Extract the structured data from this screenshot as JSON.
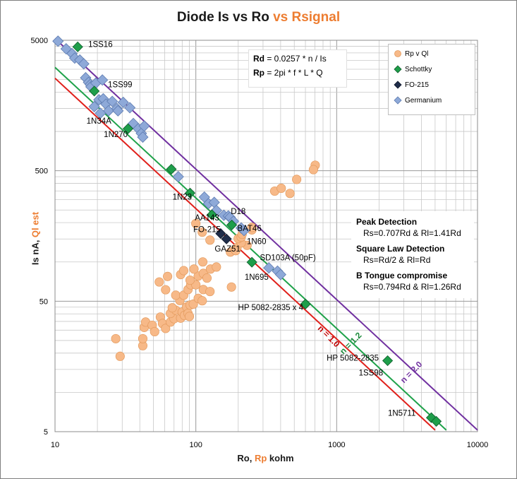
{
  "title": {
    "part1": "Diode   Is vs Ro",
    "part2": "vs  Rsignal"
  },
  "xlabel": {
    "part1": "Ro, ",
    "part2": "Rp",
    "part3": " kohm"
  },
  "ylabel": {
    "part1": "Is nA, ",
    "part2": "Ql est"
  },
  "colors": {
    "orange": "#ed7d31",
    "schottky": "#1e9e4a",
    "fo215": "#1f2d4a",
    "germanium": "#8ea9d8",
    "red": "#e0201b",
    "green": "#1fa24a",
    "purple": "#7030a0"
  },
  "formula": {
    "rd_label": "Rd",
    "rd_expr": " = 0.0257 * n / Is",
    "rp_label": "Rp",
    "rp_expr": " = 2pi * f * L * Q"
  },
  "legend": [
    {
      "label": "Rp v Ql",
      "type": "circle",
      "color": "#f7b988"
    },
    {
      "label": "Schottky",
      "type": "diamond",
      "color": "#1e9e4a"
    },
    {
      "label": "FO-215",
      "type": "diamond",
      "color": "#1f2d4a"
    },
    {
      "label": "Germanium",
      "type": "diamond",
      "color": "#8ea9d8"
    }
  ],
  "detection": [
    {
      "head": "Peak Detection",
      "eq": "Rs=0.707Rd & Rl=1.41Rd"
    },
    {
      "head": "Square Law Detection",
      "eq": "Rs=Rd/2 & Rl=Rd"
    },
    {
      "head": "B Tongue compromise",
      "eq": "Rs=0.794Rd & Rl=1.26Rd"
    }
  ],
  "chart_data": {
    "type": "scatter",
    "title": "Diode   Is vs Ro  vs  Rsignal",
    "xlabel": "Ro, Rp kohm",
    "ylabel": "Is nA, Ql est",
    "xscale": "log",
    "yscale": "log",
    "xlim": [
      10,
      10000
    ],
    "ylim": [
      5,
      5000
    ],
    "xticks": [
      "10",
      "100",
      "1000",
      "10000"
    ],
    "yticks": [
      "5",
      "50",
      "500",
      "5000"
    ],
    "grid": true,
    "legend_position": "top-right",
    "lines": [
      {
        "label": "n = 1.0",
        "color": "#e0201b",
        "x": [
          10,
          5000
        ],
        "y": [
          2560,
          5.14
        ]
      },
      {
        "label": "n = 1.2",
        "color": "#1fa24a",
        "x": [
          10,
          6000
        ],
        "y": [
          3100,
          5.14
        ]
      },
      {
        "label": "n = 2.0",
        "color": "#7030a0",
        "x": [
          10,
          10000
        ],
        "y": [
          5150,
          5.14
        ]
      }
    ],
    "series": [
      {
        "name": "Rp v Ql",
        "points": [
          [
            100,
            197
          ],
          [
            111,
            169
          ],
          [
            126,
            147
          ],
          [
            27,
            25.8
          ],
          [
            29,
            18.9
          ],
          [
            42,
            22.8
          ],
          [
            42,
            25.8
          ],
          [
            43,
            31.5
          ],
          [
            44,
            34.6
          ],
          [
            49,
            32.7
          ],
          [
            51,
            29.2
          ],
          [
            56,
            37.8
          ],
          [
            58,
            33.7
          ],
          [
            61,
            30.9
          ],
          [
            66,
            34.6
          ],
          [
            70,
            36.7
          ],
          [
            66,
            40.3
          ],
          [
            72,
            42.7
          ],
          [
            78,
            37.1
          ],
          [
            80,
            41.3
          ],
          [
            83,
            38.9
          ],
          [
            86,
            45.2
          ],
          [
            88,
            40.3
          ],
          [
            90,
            38.2
          ],
          [
            68,
            44.5
          ],
          [
            77,
            50.6
          ],
          [
            91,
            46.7
          ],
          [
            96,
            47.5
          ],
          [
            104,
            52.6
          ],
          [
            111,
            50.4
          ],
          [
            72,
            55.6
          ],
          [
            82,
            55.6
          ],
          [
            88,
            61.4
          ],
          [
            92,
            66.8
          ],
          [
            100,
            66.8
          ],
          [
            113,
            61.4
          ],
          [
            126,
            59.3
          ],
          [
            91,
            72.5
          ],
          [
            104,
            77.9
          ],
          [
            113,
            81.7
          ],
          [
            120,
            75.2
          ],
          [
            127,
            88.2
          ],
          [
            140,
            91.4
          ],
          [
            61,
            61.2
          ],
          [
            55,
            70.2
          ],
          [
            63,
            77.4
          ],
          [
            78,
            80.0
          ],
          [
            82,
            85.8
          ],
          [
            97,
            88.2
          ],
          [
            112,
            100
          ],
          [
            179,
            64.2
          ],
          [
            176,
            119
          ],
          [
            190,
            124
          ],
          [
            196,
            129
          ],
          [
            231,
            134
          ],
          [
            210,
            140
          ],
          [
            192,
            122
          ],
          [
            200,
            151
          ],
          [
            250,
            176
          ],
          [
            250,
            184
          ],
          [
            210,
            155
          ],
          [
            213,
            163
          ],
          [
            363,
            349
          ],
          [
            404,
            367
          ],
          [
            466,
            335
          ],
          [
            520,
            429
          ],
          [
            704,
            551
          ],
          [
            684,
            510
          ]
        ]
      },
      {
        "name": "Schottky",
        "points": [
          [
            14.5,
            4450
          ],
          [
            19,
            2040
          ],
          [
            33,
            1050
          ],
          [
            67,
            514
          ],
          [
            91,
            337
          ],
          [
            130,
            230
          ],
          [
            180,
            192
          ],
          [
            250,
            99.5
          ],
          [
            600,
            47.5
          ],
          [
            2300,
            17.5
          ],
          [
            4700,
            6.4
          ],
          [
            5100,
            6.0
          ]
        ]
      },
      {
        "name": "FO-215",
        "points": [
          [
            150,
            165
          ],
          [
            165,
            150
          ]
        ]
      },
      {
        "name": "Germanium",
        "points": [
          [
            10.5,
            4920
          ],
          [
            12,
            4300
          ],
          [
            13.2,
            3950
          ],
          [
            13.8,
            3650
          ],
          [
            15,
            3530
          ],
          [
            16,
            3300
          ],
          [
            16.5,
            2580
          ],
          [
            17.3,
            2380
          ],
          [
            17.8,
            2290
          ],
          [
            18,
            2200
          ],
          [
            19.5,
            2350
          ],
          [
            21.7,
            2480
          ],
          [
            20.5,
            1750
          ],
          [
            22,
            1780
          ],
          [
            23,
            1620
          ],
          [
            24,
            1440
          ],
          [
            25.5,
            1700
          ],
          [
            27.5,
            1500
          ],
          [
            28,
            1440
          ],
          [
            30.5,
            1670
          ],
          [
            34,
            1520
          ],
          [
            36,
            1150
          ],
          [
            39,
            1050
          ],
          [
            41,
            967
          ],
          [
            43,
            1100
          ],
          [
            42,
            905
          ],
          [
            21,
            1380
          ],
          [
            19,
            1550
          ],
          [
            75,
            450
          ],
          [
            115,
            314
          ],
          [
            123,
            280
          ],
          [
            135,
            286
          ],
          [
            140,
            248
          ],
          [
            158,
            228
          ],
          [
            170,
            225
          ],
          [
            175,
            220
          ],
          [
            185,
            205
          ],
          [
            210,
            182
          ],
          [
            220,
            174
          ],
          [
            330,
            90
          ],
          [
            380,
            85
          ],
          [
            400,
            80
          ]
        ]
      }
    ],
    "annotations": [
      {
        "text": "1SS16",
        "x": 21,
        "y": 4450
      },
      {
        "text": "1SS99",
        "x": 29,
        "y": 2180
      },
      {
        "text": "1N34A",
        "x": 20.5,
        "y": 1150
      },
      {
        "text": "1N270",
        "x": 27,
        "y": 907
      },
      {
        "text": "1N23",
        "x": 80,
        "y": 300
      },
      {
        "text": "AA143",
        "x": 120,
        "y": 208
      },
      {
        "text": "D18",
        "x": 200,
        "y": 232
      },
      {
        "text": "BAT46",
        "x": 240,
        "y": 173
      },
      {
        "text": "FO-215",
        "x": 120,
        "y": 169
      },
      {
        "text": "1N60",
        "x": 270,
        "y": 137
      },
      {
        "text": "GAZ51",
        "x": 168,
        "y": 120
      },
      {
        "text": "SD103A (50pF)",
        "x": 450,
        "y": 103
      },
      {
        "text": "1N695",
        "x": 270,
        "y": 73
      },
      {
        "text": "HP 5082-2835  x 4",
        "x": 340,
        "y": 42.8
      },
      {
        "text": "HP 5082-2835",
        "x": 1300,
        "y": 17.5
      },
      {
        "text": "1SS98",
        "x": 1750,
        "y": 13.5
      },
      {
        "text": "1N5711",
        "x": 2900,
        "y": 6.6
      },
      {
        "text": "n = 1.0",
        "x": 850,
        "y": 26
      },
      {
        "text": "n = 1.2",
        "x": 1300,
        "y": 23
      },
      {
        "text": "n = 2.0",
        "x": 3500,
        "y": 13.8
      }
    ]
  }
}
